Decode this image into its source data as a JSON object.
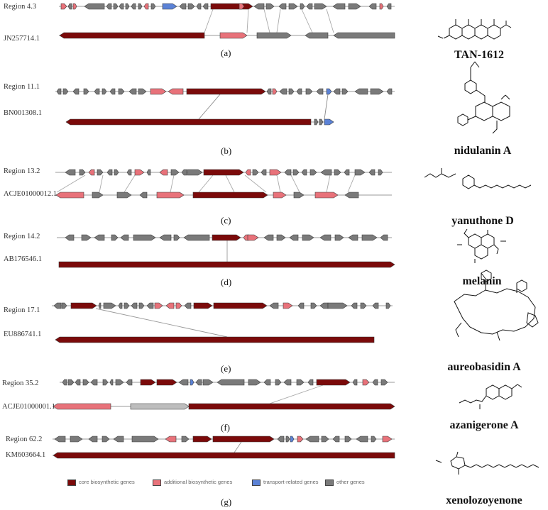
{
  "colors": {
    "core": "#7b0a0a",
    "additional": "#e8727a",
    "transport": "#5b82d6",
    "other": "#7a7a7a",
    "light_other": "#bdbdbd"
  },
  "panels": [
    {
      "id": "a",
      "label": "(a)",
      "region": "Region 4.3",
      "reference": "JN257714.1",
      "compound": "TAN-1612"
    },
    {
      "id": "b",
      "label": "(b)",
      "region": "Region 11.1",
      "reference": "BN001308.1",
      "compound": "nidulanin A"
    },
    {
      "id": "c",
      "label": "(c)",
      "region": "Region 13.2",
      "reference": "ACJE01000012.1",
      "compound": "yanuthone D"
    },
    {
      "id": "d",
      "label": "(d)",
      "region": "Region 14.2",
      "reference": "AB176546.1",
      "compound": "melanin"
    },
    {
      "id": "e",
      "label": "(e)",
      "region": "Region 17.1",
      "reference": "EU886741.1",
      "compound": "aureobasidin A"
    },
    {
      "id": "f",
      "label": "(f)",
      "region": "Region 35.2",
      "reference": "ACJE01000001.1",
      "compound": "azanigerone A"
    },
    {
      "id": "g",
      "label": "(g)",
      "region": "Region 62.2",
      "reference": "KM603664.1",
      "compound": "xenolozoyenone"
    }
  ],
  "legend": {
    "core": "core biosynthetic genes",
    "additional": "additional biosynthetic genes",
    "transport": "transport-related genes",
    "other": "other genes"
  }
}
